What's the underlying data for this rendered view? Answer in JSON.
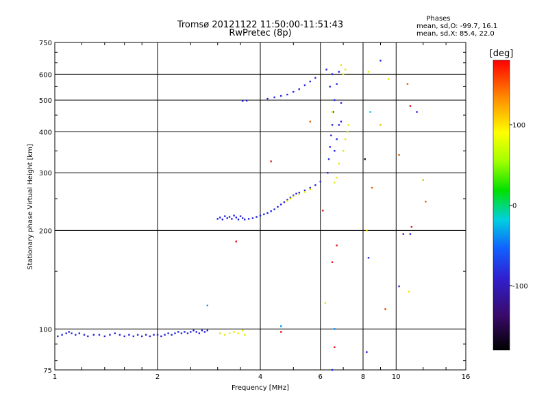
{
  "chart_data": {
    "type": "scatter",
    "title": "Tromsø 20121122 11:50:00-11:51:43",
    "subtitle": "RwPretec (8p)",
    "legend_title": "Phases",
    "legend_lines": [
      "mean, sd,O: -99.7, 16.1",
      "mean, sd,X: 85.4, 22.0"
    ],
    "xlabel": "Frequency [MHz]",
    "ylabel": "Stationary phase Virtual Height [km]",
    "x_scale": "log",
    "y_scale": "log",
    "xlim": [
      1,
      16
    ],
    "ylim": [
      75,
      750
    ],
    "x_ticks": [
      1,
      2,
      4,
      6,
      8,
      10,
      16
    ],
    "y_ticks": [
      75,
      100,
      200,
      300,
      400,
      500,
      600,
      750
    ],
    "grid": true,
    "colorbar": {
      "label": "[deg]",
      "range": [
        -180,
        180
      ],
      "ticks": [
        100,
        0,
        -100
      ],
      "colors": [
        "#000000",
        "#2b0040",
        "#4b1a9e",
        "#1030ff",
        "#0090ff",
        "#00e0e0",
        "#00e000",
        "#c0ff00",
        "#ffff00",
        "#ff9900",
        "#ff0000"
      ]
    },
    "series": [
      {
        "values": [
          [
            1.02,
            95
          ],
          [
            1.05,
            96
          ],
          [
            1.08,
            97
          ],
          [
            1.1,
            98
          ],
          [
            1.12,
            97
          ],
          [
            1.15,
            96
          ],
          [
            1.18,
            97
          ],
          [
            1.22,
            96
          ],
          [
            1.25,
            95
          ],
          [
            1.3,
            96
          ],
          [
            1.35,
            96
          ],
          [
            1.4,
            95
          ],
          [
            1.45,
            96
          ],
          [
            1.5,
            97
          ],
          [
            1.55,
            96
          ],
          [
            1.6,
            95
          ],
          [
            1.65,
            96
          ],
          [
            1.7,
            95
          ],
          [
            1.75,
            96
          ],
          [
            1.8,
            95
          ],
          [
            1.85,
            96
          ],
          [
            1.9,
            95
          ],
          [
            1.95,
            96
          ],
          [
            2.0,
            96
          ],
          [
            2.05,
            95
          ],
          [
            2.1,
            96
          ],
          [
            2.15,
            97
          ],
          [
            2.2,
            96
          ],
          [
            2.25,
            97
          ],
          [
            2.3,
            98
          ],
          [
            2.35,
            97
          ],
          [
            2.4,
            98
          ],
          [
            2.45,
            97
          ],
          [
            2.5,
            98
          ],
          [
            2.55,
            99
          ],
          [
            2.6,
            98
          ],
          [
            2.65,
            97
          ],
          [
            2.7,
            99
          ],
          [
            2.75,
            98
          ],
          [
            2.8,
            99
          ],
          [
            3.0,
            217
          ],
          [
            3.05,
            219
          ],
          [
            3.1,
            216
          ],
          [
            3.15,
            221
          ],
          [
            3.2,
            218
          ],
          [
            3.25,
            220
          ],
          [
            3.3,
            217
          ],
          [
            3.35,
            222
          ],
          [
            3.4,
            219
          ],
          [
            3.45,
            216
          ],
          [
            3.5,
            221
          ],
          [
            3.55,
            218
          ],
          [
            3.6,
            216
          ],
          [
            3.7,
            217
          ],
          [
            3.8,
            218
          ],
          [
            3.9,
            220
          ],
          [
            4.0,
            222
          ],
          [
            4.1,
            224
          ],
          [
            4.2,
            226
          ],
          [
            4.3,
            229
          ],
          [
            4.4,
            232
          ],
          [
            4.5,
            236
          ],
          [
            4.6,
            240
          ],
          [
            4.7,
            244
          ],
          [
            4.8,
            248
          ],
          [
            4.9,
            252
          ],
          [
            5.0,
            256
          ],
          [
            5.1,
            259
          ],
          [
            5.2,
            261
          ],
          [
            5.4,
            265
          ],
          [
            5.6,
            270
          ],
          [
            5.8,
            275
          ],
          [
            6.0,
            282
          ],
          [
            4.2,
            505
          ],
          [
            4.4,
            510
          ],
          [
            4.6,
            515
          ],
          [
            4.8,
            520
          ],
          [
            5.0,
            530
          ],
          [
            5.2,
            540
          ],
          [
            5.4,
            555
          ],
          [
            5.6,
            570
          ],
          [
            5.8,
            585
          ],
          [
            3.55,
            497
          ],
          [
            3.65,
            498
          ],
          [
            6.3,
            300
          ],
          [
            6.35,
            330
          ],
          [
            6.4,
            360
          ],
          [
            6.45,
            390
          ],
          [
            6.5,
            420
          ],
          [
            6.55,
            460
          ],
          [
            6.6,
            500
          ],
          [
            6.7,
            560
          ],
          [
            6.8,
            610
          ],
          [
            6.6,
            350
          ],
          [
            6.7,
            380
          ],
          [
            6.8,
            420
          ],
          [
            6.25,
            620
          ],
          [
            6.5,
            600
          ],
          [
            6.9,
            430
          ],
          [
            6.4,
            550
          ]
        ],
        "color": "#2020e0",
        "phase": "O"
      },
      {
        "values": [
          [
            3.05,
            97
          ],
          [
            3.15,
            96
          ],
          [
            3.25,
            97
          ],
          [
            3.35,
            98
          ],
          [
            3.45,
            97
          ],
          [
            3.55,
            99
          ],
          [
            3.6,
            96
          ],
          [
            4.8,
            246
          ],
          [
            4.9,
            250
          ],
          [
            5.0,
            254
          ],
          [
            5.2,
            258
          ],
          [
            5.4,
            262
          ],
          [
            5.6,
            267
          ],
          [
            6.6,
            280
          ],
          [
            6.7,
            290
          ],
          [
            6.8,
            320
          ],
          [
            7.0,
            350
          ],
          [
            7.1,
            380
          ],
          [
            7.2,
            400
          ],
          [
            7.25,
            420
          ],
          [
            7.0,
            600
          ],
          [
            6.9,
            640
          ],
          [
            7.1,
            620
          ],
          [
            6.5,
            460
          ]
        ],
        "color": "#e8e800",
        "phase": "X"
      }
    ],
    "scatter_points": [
      [
        4.6,
        98,
        "#e01010"
      ],
      [
        3.4,
        185,
        "#e01010"
      ],
      [
        4.3,
        325,
        "#e01010"
      ],
      [
        5.6,
        430,
        "#e06000"
      ],
      [
        6.7,
        180,
        "#e01010"
      ],
      [
        6.5,
        160,
        "#e01010"
      ],
      [
        8.5,
        270,
        "#e06000"
      ],
      [
        9.0,
        420,
        "#e8c000"
      ],
      [
        9.5,
        580,
        "#e8e800"
      ],
      [
        10.2,
        340,
        "#e06000"
      ],
      [
        10.8,
        560,
        "#e06000"
      ],
      [
        11.0,
        480,
        "#e01010"
      ],
      [
        11.1,
        205,
        "#e01010"
      ],
      [
        11.0,
        195,
        "#2020e0"
      ],
      [
        11.5,
        460,
        "#2020e0"
      ],
      [
        12.0,
        285,
        "#c0e000"
      ],
      [
        12.2,
        245,
        "#e06000"
      ],
      [
        10.5,
        195,
        "#800080"
      ],
      [
        10.9,
        130,
        "#e8e800"
      ],
      [
        8.4,
        460,
        "#00c0ff"
      ],
      [
        8.3,
        165,
        "#2020e0"
      ],
      [
        8.2,
        85,
        "#2020e0"
      ],
      [
        10.2,
        135,
        "#2020e0"
      ],
      [
        9.0,
        660,
        "#2020e0"
      ],
      [
        9.3,
        115,
        "#e04000"
      ],
      [
        8.1,
        330,
        "#000000"
      ],
      [
        6.2,
        120,
        "#e8e800"
      ],
      [
        6.5,
        75,
        "#2020e0"
      ],
      [
        6.6,
        88,
        "#e01010"
      ],
      [
        6.6,
        100,
        "#0090ff"
      ],
      [
        4.6,
        102,
        "#0090ff"
      ],
      [
        2.8,
        118,
        "#0090ff"
      ],
      [
        8.3,
        610,
        "#e8e800"
      ],
      [
        8.2,
        200,
        "#e8e800"
      ],
      [
        6.9,
        490,
        "#2020e0"
      ],
      [
        6.1,
        230,
        "#e01010"
      ]
    ]
  }
}
